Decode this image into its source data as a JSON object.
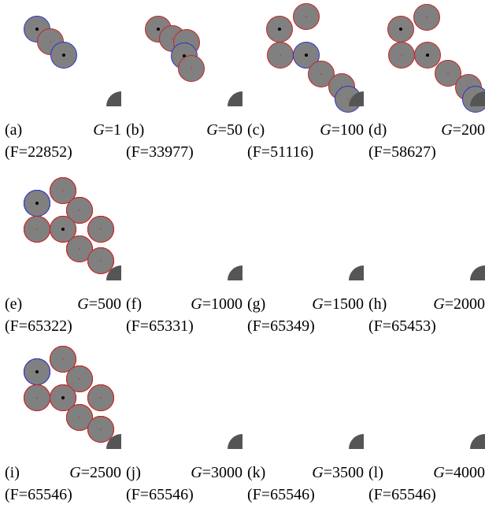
{
  "colors": {
    "fill": "#808080",
    "red": "#cc2222",
    "blue": "#2b35c9",
    "dot": "#000000",
    "corner": "#555555"
  },
  "panels": [
    {
      "label": "(a)",
      "g_var": "G",
      "g_value": "=1",
      "fitness": "(F=22852)"
    },
    {
      "label": "(b)",
      "g_var": "G",
      "g_value": "=50",
      "fitness": "(F=33977)"
    },
    {
      "label": "(c)",
      "g_var": "G",
      "g_value": "=100",
      "fitness": "(F=51116)"
    },
    {
      "label": "(d)",
      "g_var": "G",
      "g_value": "=200",
      "fitness": "(F=58627)"
    },
    {
      "label": "(e)",
      "g_var": "G",
      "g_value": "=500",
      "fitness": "(F=65322)"
    },
    {
      "label": "(f)",
      "g_var": "G",
      "g_value": "=1000",
      "fitness": "(F=65331)"
    },
    {
      "label": "(g)",
      "g_var": "G",
      "g_value": "=1500",
      "fitness": "(F=65349)"
    },
    {
      "label": "(h)",
      "g_var": "G",
      "g_value": "=2000",
      "fitness": "(F=65453)"
    },
    {
      "label": "(i)",
      "g_var": "G",
      "g_value": "=2500",
      "fitness": "(F=65546)"
    },
    {
      "label": "(j)",
      "g_var": "G",
      "g_value": "=3000",
      "fitness": "(F=65546)"
    },
    {
      "label": "(k)",
      "g_var": "G",
      "g_value": "=3500",
      "fitness": "(F=65546)"
    },
    {
      "label": "(l)",
      "g_var": "G",
      "g_value": "=4000",
      "fitness": "(F=65546)"
    }
  ]
}
